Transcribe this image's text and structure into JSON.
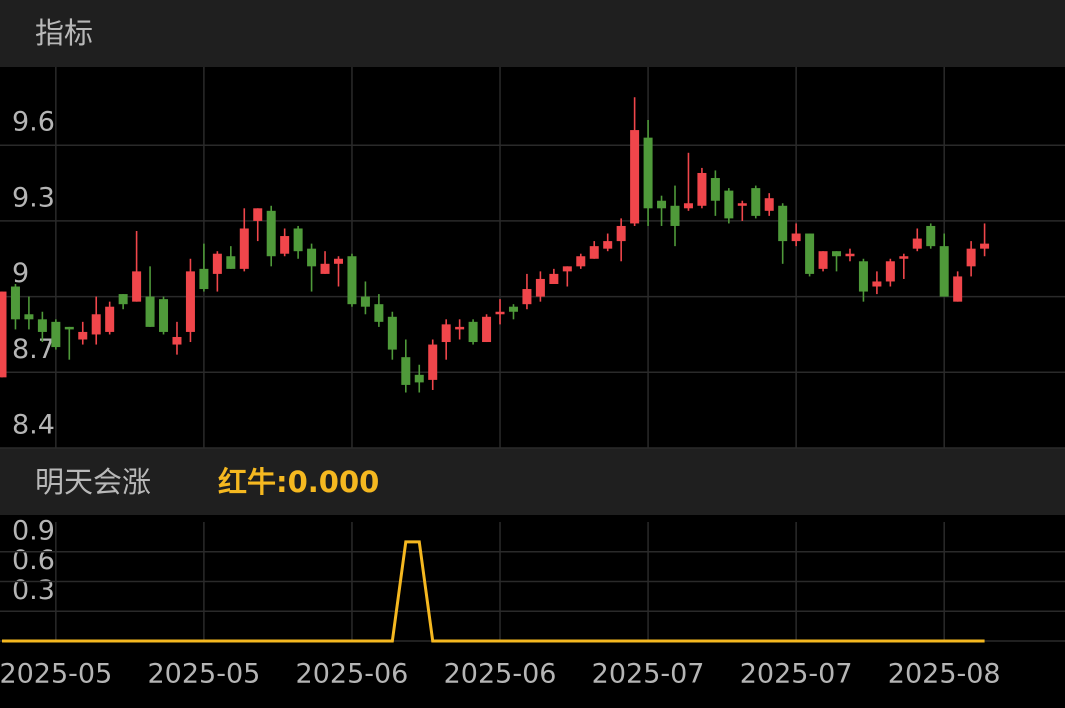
{
  "title": "指标",
  "chart_data": [
    {
      "type": "candlestick",
      "up_color": "#f0464b",
      "down_color": "#4f9a3a",
      "open": [
        8.68,
        9.04,
        8.93,
        8.91,
        8.9,
        8.88,
        8.83,
        8.85,
        8.86,
        9.01,
        8.98,
        9.0,
        8.99,
        8.81,
        8.86,
        9.11,
        9.09,
        9.16,
        9.11,
        9.3,
        9.34,
        9.17,
        9.27,
        9.19,
        9.09,
        9.13,
        9.16,
        9.0,
        8.97,
        8.92,
        8.76,
        8.69,
        8.67,
        8.82,
        8.87,
        8.9,
        8.82,
        8.93,
        8.96,
        8.97,
        9.0,
        9.05,
        9.1,
        9.12,
        9.15,
        9.19,
        9.22,
        9.29,
        9.63,
        9.38,
        9.36,
        9.35,
        9.36,
        9.47,
        9.42,
        9.36,
        9.43,
        9.34,
        9.36,
        9.22,
        9.25,
        9.11,
        9.18,
        9.16,
        9.14,
        9.04,
        9.06,
        9.15,
        9.19,
        9.28,
        9.2,
        8.98,
        9.12,
        9.19
      ],
      "high": [
        9.02,
        9.05,
        9.0,
        8.94,
        8.91,
        8.88,
        8.9,
        9.0,
        8.98,
        9.01,
        9.26,
        9.12,
        9.0,
        8.9,
        9.15,
        9.21,
        9.18,
        9.2,
        9.35,
        9.35,
        9.36,
        9.27,
        9.28,
        9.21,
        9.18,
        9.16,
        9.17,
        9.06,
        9.01,
        8.94,
        8.83,
        8.73,
        8.83,
        8.91,
        8.91,
        8.91,
        8.93,
        8.99,
        8.97,
        9.09,
        9.1,
        9.11,
        9.12,
        9.17,
        9.22,
        9.25,
        9.31,
        9.79,
        9.7,
        9.4,
        9.44,
        9.57,
        9.51,
        9.5,
        9.43,
        9.38,
        9.44,
        9.41,
        9.37,
        9.29,
        9.25,
        9.18,
        9.18,
        9.19,
        9.15,
        9.1,
        9.15,
        9.17,
        9.27,
        9.29,
        9.25,
        9.1,
        9.22,
        9.29
      ],
      "low": [
        8.68,
        8.87,
        8.87,
        8.82,
        8.79,
        8.75,
        8.81,
        8.81,
        8.85,
        8.95,
        8.98,
        8.88,
        8.85,
        8.77,
        8.82,
        9.02,
        9.02,
        9.11,
        9.1,
        9.22,
        9.12,
        9.16,
        9.15,
        9.02,
        9.09,
        9.04,
        8.96,
        8.93,
        8.88,
        8.75,
        8.62,
        8.62,
        8.63,
        8.75,
        8.83,
        8.81,
        8.82,
        8.89,
        8.91,
        8.95,
        8.98,
        9.05,
        9.04,
        9.11,
        9.15,
        9.18,
        9.14,
        9.28,
        9.28,
        9.28,
        9.2,
        9.34,
        9.35,
        9.32,
        9.29,
        9.3,
        9.31,
        9.32,
        9.13,
        9.2,
        9.08,
        9.1,
        9.1,
        9.14,
        8.98,
        9.01,
        9.04,
        9.07,
        9.18,
        9.19,
        9.0,
        8.98,
        9.08,
        9.16
      ],
      "close": [
        9.02,
        8.91,
        8.91,
        8.86,
        8.8,
        8.87,
        8.86,
        8.93,
        8.96,
        8.97,
        9.1,
        8.88,
        8.86,
        8.84,
        9.1,
        9.03,
        9.17,
        9.11,
        9.27,
        9.35,
        9.16,
        9.24,
        9.18,
        9.12,
        9.13,
        9.15,
        8.97,
        8.96,
        8.9,
        8.79,
        8.65,
        8.66,
        8.81,
        8.89,
        8.88,
        8.82,
        8.92,
        8.94,
        8.94,
        9.03,
        9.07,
        9.09,
        9.12,
        9.16,
        9.2,
        9.22,
        9.28,
        9.66,
        9.35,
        9.35,
        9.28,
        9.37,
        9.49,
        9.38,
        9.31,
        9.37,
        9.32,
        9.39,
        9.22,
        9.25,
        9.09,
        9.18,
        9.16,
        9.17,
        9.02,
        9.06,
        9.14,
        9.16,
        9.23,
        9.2,
        9.0,
        9.08,
        9.19,
        9.21
      ],
      "ylim": [
        8.4,
        9.91
      ],
      "yticks": [
        8.4,
        8.7,
        9,
        9.3,
        9.6
      ],
      "grid": true
    },
    {
      "type": "line",
      "title": "明天会涨",
      "readout": "红牛:0.000",
      "categories": [
        null,
        null,
        null,
        null,
        "2025-05",
        null,
        null,
        null,
        null,
        null,
        null,
        null,
        null,
        null,
        null,
        "2025-05",
        null,
        null,
        null,
        null,
        null,
        null,
        null,
        null,
        null,
        null,
        "2025-06",
        null,
        null,
        null,
        null,
        null,
        null,
        null,
        null,
        null,
        null,
        "2025-06",
        null,
        null,
        null,
        null,
        null,
        null,
        null,
        null,
        null,
        null,
        "2025-07",
        null,
        null,
        null,
        null,
        null,
        null,
        null,
        null,
        null,
        null,
        "2025-07",
        null,
        null,
        null,
        null,
        null,
        null,
        null,
        null,
        null,
        null,
        "2025-08",
        null,
        null,
        null
      ],
      "series": [
        {
          "name": "红牛",
          "color": "#f5b820",
          "values": [
            0,
            0,
            0,
            0,
            0,
            0,
            0,
            0,
            0,
            0,
            0,
            0,
            0,
            0,
            0,
            0,
            0,
            0,
            0,
            0,
            0,
            0,
            0,
            0,
            0,
            0,
            0,
            0,
            0,
            0,
            1,
            1,
            0,
            0,
            0,
            0,
            0,
            0,
            0,
            0,
            0,
            0,
            0,
            0,
            0,
            0,
            0,
            0,
            0,
            0,
            0,
            0,
            0,
            0,
            0,
            0,
            0,
            0,
            0,
            0,
            0,
            0,
            0,
            0,
            0,
            0,
            0,
            0,
            0,
            0,
            0,
            0,
            0,
            0
          ]
        }
      ],
      "ylim": [
        0,
        1.2
      ],
      "yticks": [
        0.3,
        0.6,
        0.9
      ],
      "grid": true
    }
  ]
}
